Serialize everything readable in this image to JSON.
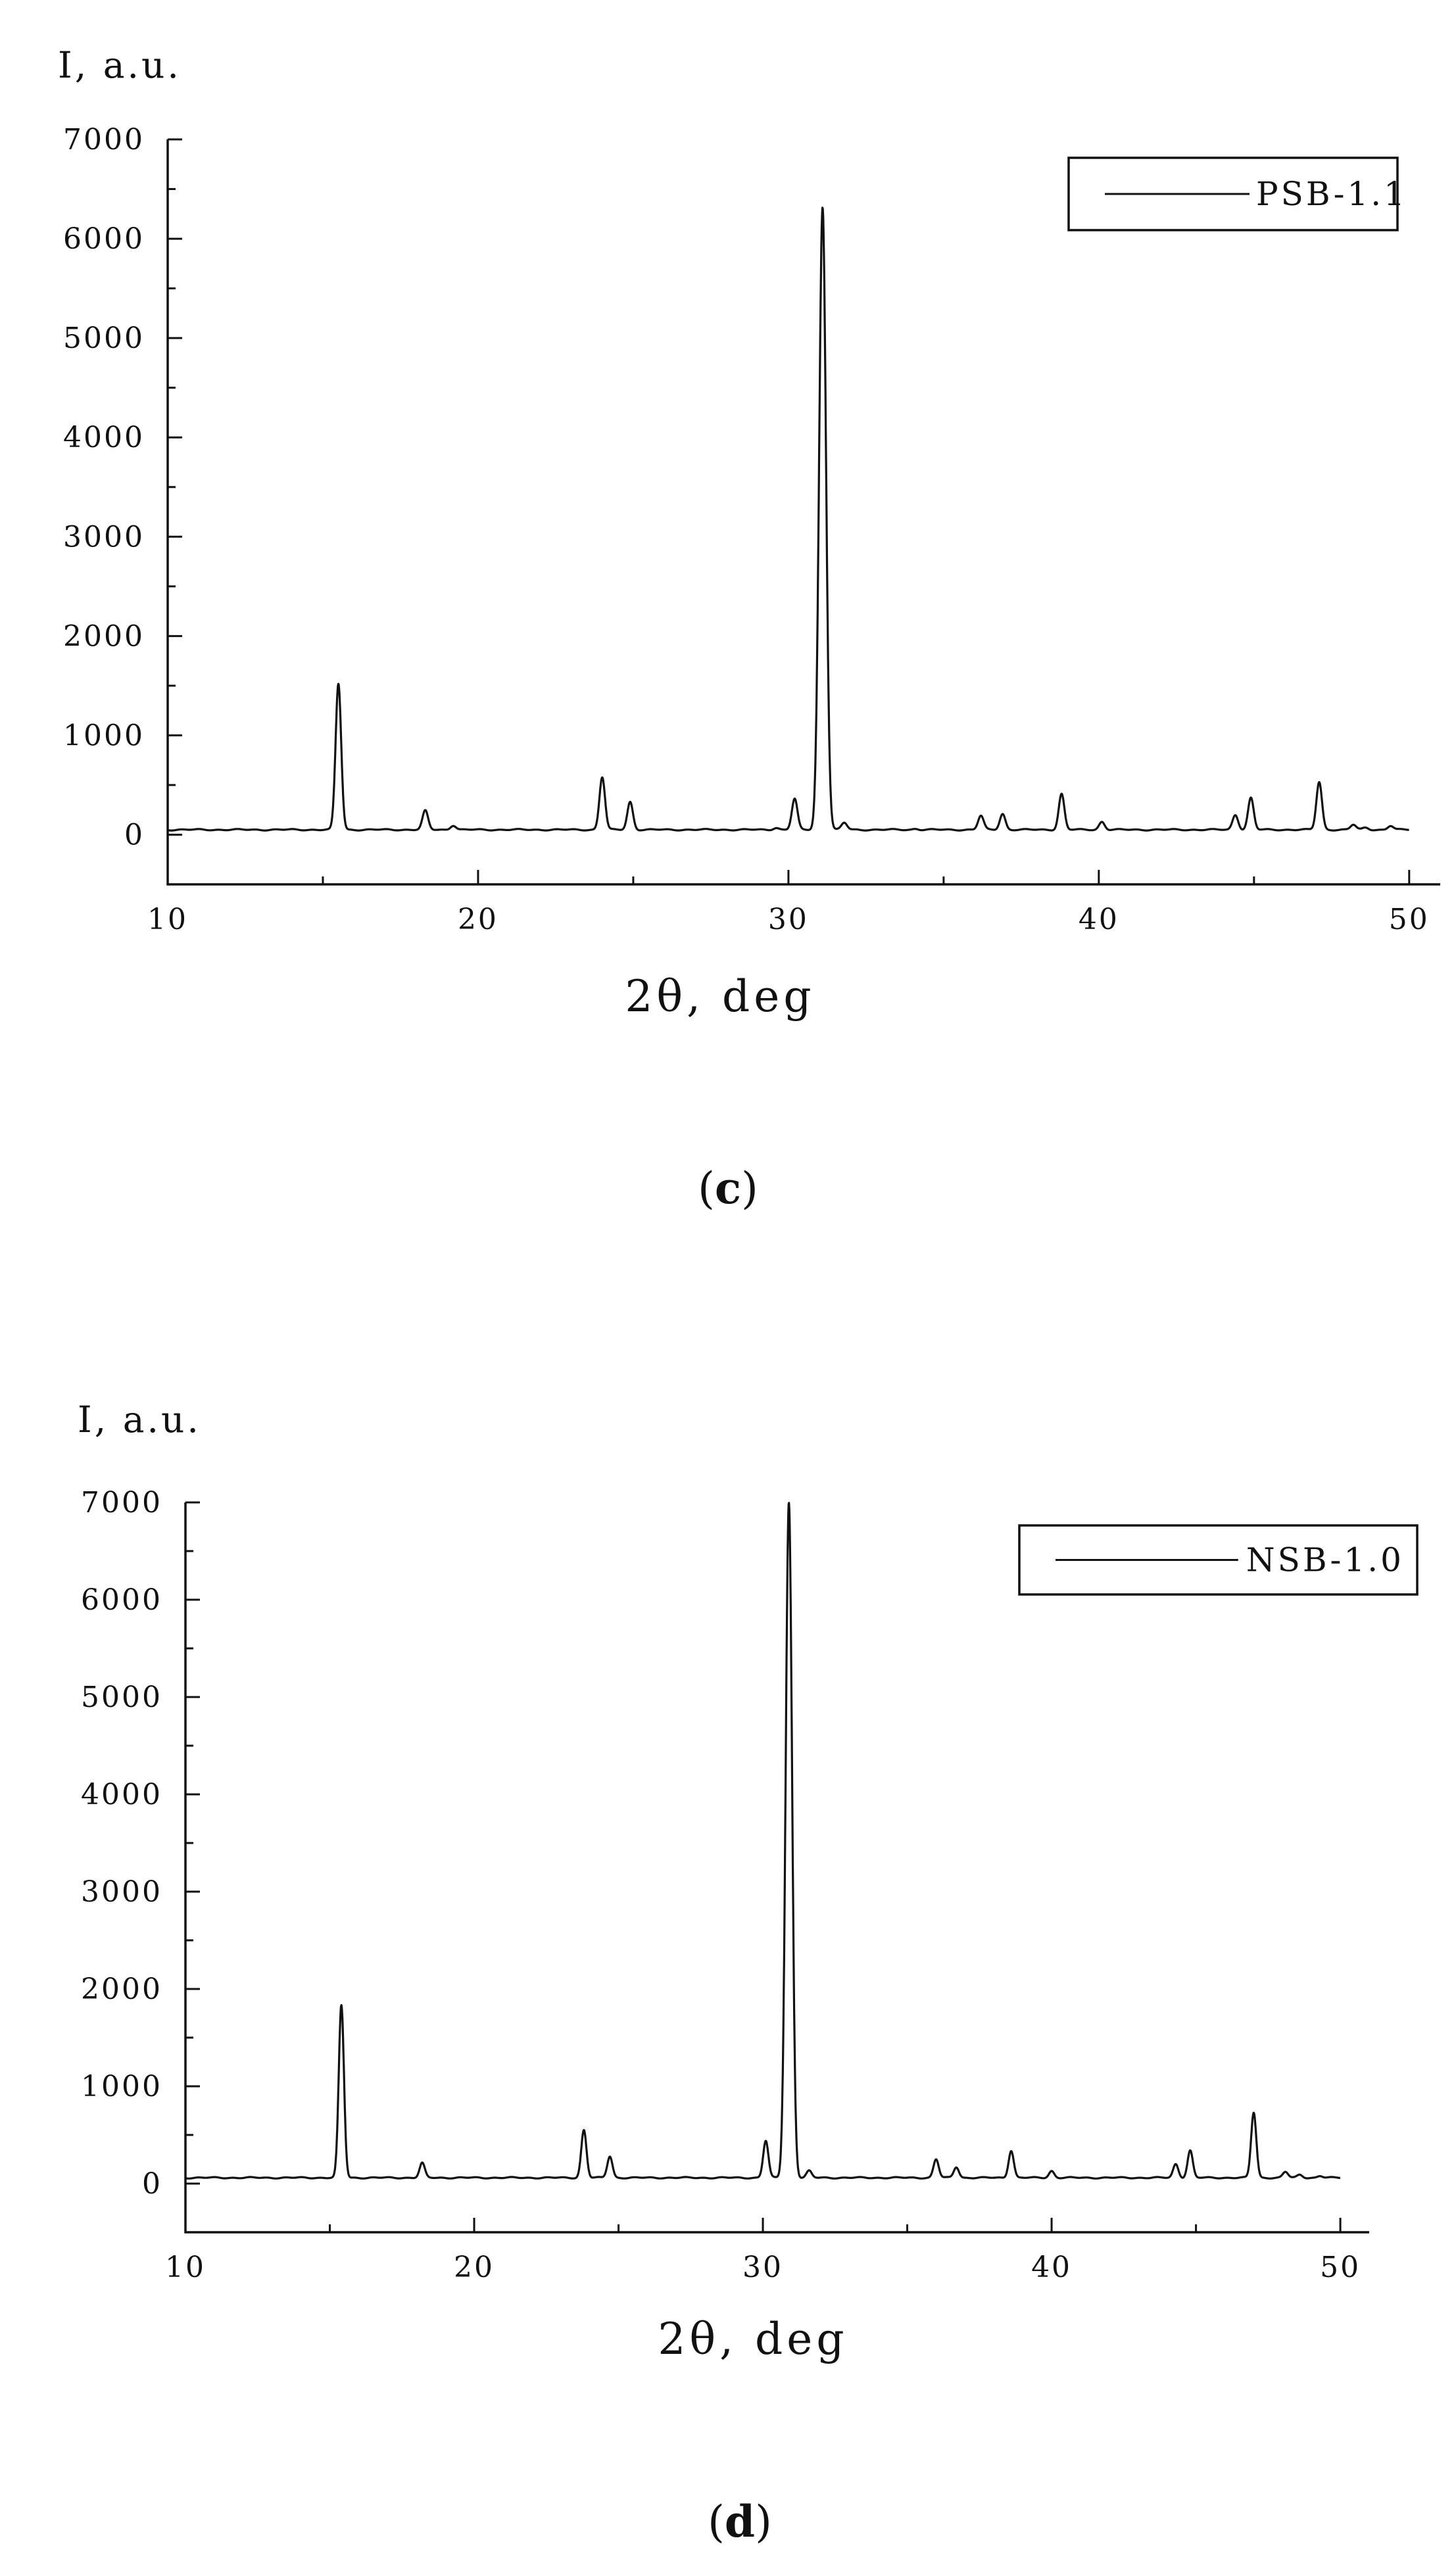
{
  "chart_data": [
    {
      "type": "line",
      "panel_label": "c",
      "ylabel": "I, a.u.",
      "xlabel": "2θ, deg",
      "xlim": [
        10,
        51
      ],
      "ylim": [
        -500,
        7000
      ],
      "xticks": [
        10,
        20,
        30,
        40,
        50
      ],
      "yticks": [
        0,
        1000,
        2000,
        3000,
        4000,
        5000,
        6000,
        7000
      ],
      "grid": false,
      "legend_position": "top-right",
      "baseline": 50,
      "x_end": 50,
      "series": [
        {
          "name": "PSB-1.1",
          "color": "#111111",
          "peaks": [
            {
              "x": 15.5,
              "y": 1520
            },
            {
              "x": 18.3,
              "y": 240
            },
            {
              "x": 19.2,
              "y": 95
            },
            {
              "x": 24.0,
              "y": 580
            },
            {
              "x": 24.9,
              "y": 330
            },
            {
              "x": 29.6,
              "y": 70
            },
            {
              "x": 30.2,
              "y": 360
            },
            {
              "x": 31.1,
              "y": 6320
            },
            {
              "x": 31.8,
              "y": 120
            },
            {
              "x": 34.1,
              "y": 60
            },
            {
              "x": 36.2,
              "y": 190
            },
            {
              "x": 36.9,
              "y": 210
            },
            {
              "x": 37.5,
              "y": 50
            },
            {
              "x": 38.8,
              "y": 410
            },
            {
              "x": 40.1,
              "y": 130
            },
            {
              "x": 44.4,
              "y": 200
            },
            {
              "x": 44.9,
              "y": 370
            },
            {
              "x": 47.1,
              "y": 530
            },
            {
              "x": 48.2,
              "y": 100
            },
            {
              "x": 48.6,
              "y": 70
            },
            {
              "x": 49.4,
              "y": 90
            }
          ]
        }
      ]
    },
    {
      "type": "line",
      "panel_label": "d",
      "ylabel": "I, a.u.",
      "xlabel": "2θ, deg",
      "xlim": [
        10,
        51
      ],
      "ylim": [
        -500,
        7000
      ],
      "xticks": [
        10,
        20,
        30,
        40,
        50
      ],
      "yticks": [
        0,
        1000,
        2000,
        3000,
        4000,
        5000,
        6000,
        7000
      ],
      "grid": false,
      "legend_position": "top-right",
      "baseline": 60,
      "x_end": 50,
      "series": [
        {
          "name": "NSB-1.0",
          "color": "#111111",
          "peaks": [
            {
              "x": 15.4,
              "y": 1830
            },
            {
              "x": 18.2,
              "y": 210
            },
            {
              "x": 23.8,
              "y": 550
            },
            {
              "x": 24.7,
              "y": 280
            },
            {
              "x": 30.1,
              "y": 440
            },
            {
              "x": 30.9,
              "y": 7000
            },
            {
              "x": 31.6,
              "y": 130
            },
            {
              "x": 36.0,
              "y": 250
            },
            {
              "x": 36.7,
              "y": 170
            },
            {
              "x": 38.6,
              "y": 340
            },
            {
              "x": 40.0,
              "y": 130
            },
            {
              "x": 44.3,
              "y": 200
            },
            {
              "x": 44.8,
              "y": 340
            },
            {
              "x": 47.0,
              "y": 730
            },
            {
              "x": 48.1,
              "y": 120
            },
            {
              "x": 48.6,
              "y": 90
            },
            {
              "x": 49.3,
              "y": 80
            }
          ]
        }
      ]
    }
  ]
}
